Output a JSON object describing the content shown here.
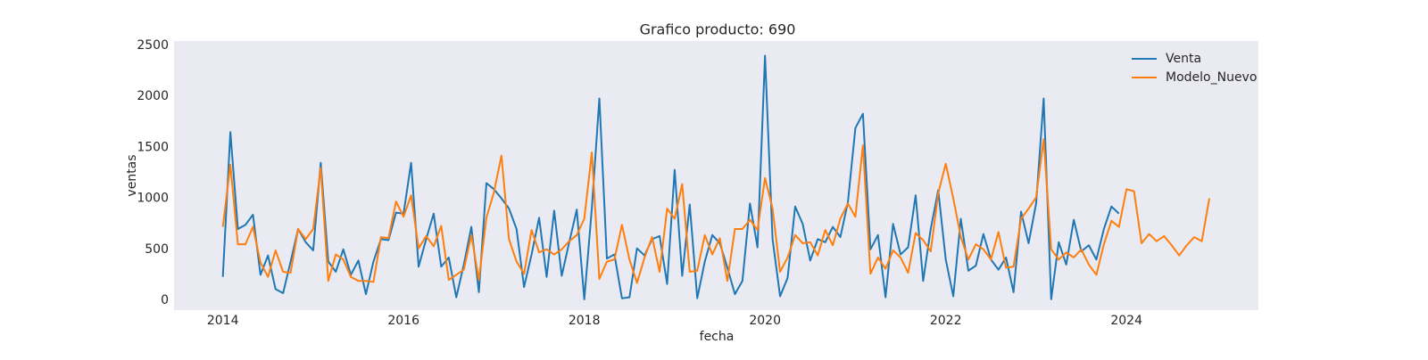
{
  "chart_data": {
    "type": "line",
    "title": "Grafico producto: 690",
    "x_label": "fecha",
    "y_label": "ventas",
    "x": [
      "2014-01",
      "2014-02",
      "2014-03",
      "2014-04",
      "2014-05",
      "2014-06",
      "2014-07",
      "2014-08",
      "2014-09",
      "2014-10",
      "2014-11",
      "2014-12",
      "2015-01",
      "2015-02",
      "2015-03",
      "2015-04",
      "2015-05",
      "2015-06",
      "2015-07",
      "2015-08",
      "2015-09",
      "2015-10",
      "2015-11",
      "2015-12",
      "2016-01",
      "2016-02",
      "2016-03",
      "2016-04",
      "2016-05",
      "2016-06",
      "2016-07",
      "2016-08",
      "2016-09",
      "2016-10",
      "2016-11",
      "2016-12",
      "2017-01",
      "2017-02",
      "2017-03",
      "2017-04",
      "2017-05",
      "2017-06",
      "2017-07",
      "2017-08",
      "2017-09",
      "2017-10",
      "2017-11",
      "2017-12",
      "2018-01",
      "2018-02",
      "2018-03",
      "2018-04",
      "2018-05",
      "2018-06",
      "2018-07",
      "2018-08",
      "2018-09",
      "2018-10",
      "2018-11",
      "2018-12",
      "2019-01",
      "2019-02",
      "2019-03",
      "2019-04",
      "2019-05",
      "2019-06",
      "2019-07",
      "2019-08",
      "2019-09",
      "2019-10",
      "2019-11",
      "2019-12",
      "2020-01",
      "2020-02",
      "2020-03",
      "2020-04",
      "2020-05",
      "2020-06",
      "2020-07",
      "2020-08",
      "2020-09",
      "2020-10",
      "2020-11",
      "2020-12",
      "2021-01",
      "2021-02",
      "2021-03",
      "2021-04",
      "2021-05",
      "2021-06",
      "2021-07",
      "2021-08",
      "2021-09",
      "2021-10",
      "2021-11",
      "2021-12",
      "2022-01",
      "2022-02",
      "2022-03",
      "2022-04",
      "2022-05",
      "2022-06",
      "2022-07",
      "2022-08",
      "2022-09",
      "2022-10",
      "2022-11",
      "2022-12",
      "2023-01",
      "2023-02",
      "2023-03",
      "2023-04",
      "2023-05",
      "2023-06",
      "2023-07",
      "2023-08",
      "2023-09",
      "2023-10",
      "2023-11",
      "2023-12",
      "2024-01",
      "2024-02",
      "2024-03",
      "2024-04",
      "2024-05",
      "2024-06",
      "2024-07",
      "2024-08",
      "2024-09",
      "2024-10",
      "2024-11",
      "2024-12"
    ],
    "series": [
      {
        "name": "Venta",
        "color": "#1f77b4",
        "values": [
          230,
          1650,
          700,
          740,
          840,
          250,
          440,
          110,
          70,
          380,
          700,
          570,
          490,
          1350,
          380,
          280,
          500,
          250,
          390,
          60,
          380,
          600,
          590,
          860,
          850,
          1350,
          330,
          600,
          850,
          330,
          420,
          30,
          350,
          720,
          80,
          1150,
          1090,
          1000,
          900,
          700,
          130,
          450,
          810,
          230,
          880,
          240,
          570,
          890,
          10,
          900,
          1980,
          410,
          450,
          20,
          30,
          510,
          440,
          600,
          630,
          160,
          1280,
          240,
          940,
          20,
          380,
          640,
          560,
          320,
          60,
          190,
          950,
          520,
          2400,
          600,
          40,
          220,
          920,
          750,
          390,
          600,
          570,
          720,
          620,
          960,
          1690,
          1830,
          500,
          640,
          30,
          750,
          450,
          520,
          1030,
          190,
          700,
          1080,
          400,
          40,
          800,
          290,
          340,
          650,
          400,
          300,
          420,
          80,
          870,
          560,
          950,
          1980,
          10,
          570,
          350,
          790,
          480,
          540,
          400,
          700,
          920,
          850,
          null,
          null,
          null,
          null,
          null,
          null,
          null,
          null,
          null,
          null,
          null,
          null
        ]
      },
      {
        "name": "Modelo_Nuevo",
        "color": "#ff7f0e",
        "values": [
          720,
          1330,
          550,
          550,
          720,
          370,
          230,
          490,
          280,
          270,
          700,
          600,
          700,
          1300,
          190,
          450,
          400,
          230,
          190,
          190,
          180,
          620,
          610,
          970,
          820,
          1030,
          510,
          630,
          530,
          730,
          200,
          250,
          300,
          640,
          200,
          810,
          1060,
          1420,
          600,
          380,
          260,
          690,
          470,
          500,
          450,
          500,
          580,
          640,
          800,
          1450,
          210,
          380,
          400,
          740,
          400,
          170,
          420,
          620,
          280,
          900,
          800,
          1140,
          280,
          290,
          640,
          450,
          610,
          190,
          700,
          700,
          790,
          690,
          1200,
          900,
          280,
          420,
          640,
          560,
          570,
          440,
          690,
          540,
          800,
          950,
          820,
          1520,
          260,
          420,
          310,
          490,
          420,
          270,
          660,
          590,
          480,
          1050,
          1340,
          1000,
          620,
          400,
          550,
          500,
          400,
          670,
          320,
          330,
          800,
          900,
          1010,
          1580,
          500,
          400,
          470,
          420,
          500,
          350,
          250,
          550,
          780,
          720,
          1090,
          1070,
          560,
          650,
          580,
          630,
          540,
          440,
          540,
          620,
          580,
          1000
        ]
      }
    ],
    "xlim": [
      2013.46,
      2025.46
    ],
    "xticks": [
      2014,
      2016,
      2018,
      2020,
      2022,
      2024
    ],
    "ylim": [
      -96,
      2544
    ],
    "yticks": [
      0,
      500,
      1000,
      1500,
      2000,
      2500
    ],
    "grid": false,
    "legend": "upper right"
  }
}
